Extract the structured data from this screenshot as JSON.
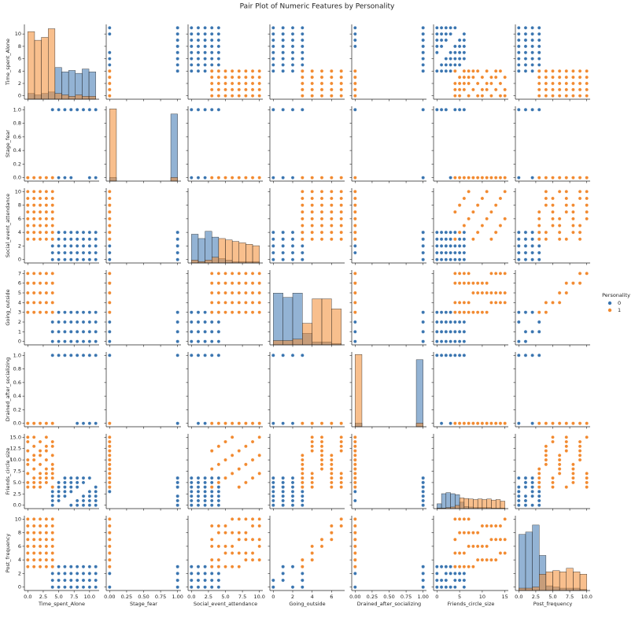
{
  "chart_data": {
    "type": "pairplot",
    "title": "Pair Plot of Numeric Features by Personality",
    "legend_title": "Personality",
    "legend": "right",
    "variables": [
      {
        "name": "Time_spent_Alone",
        "lim": [
          -0.55,
          11.55
        ],
        "xticks": [
          {
            "value": 0,
            "label": "0.0"
          },
          {
            "value": 2.5,
            "label": "2.5"
          },
          {
            "value": 5,
            "label": "5.0"
          },
          {
            "value": 7.5,
            "label": "7.5"
          },
          {
            "value": 10,
            "label": "10.0"
          }
        ],
        "yticks": [
          0,
          2,
          4,
          6,
          8,
          10
        ],
        "bins": [
          0,
          1.1,
          2.2,
          3.3,
          4.4,
          5.5,
          6.6,
          7.7,
          8.8,
          9.9,
          11
        ],
        "hist_ylim": [
          0,
          260
        ]
      },
      {
        "name": "Stage_fear",
        "lim": [
          -0.05,
          1.05
        ],
        "xticks": [
          {
            "value": 0,
            "label": "0.00"
          },
          {
            "value": 0.25,
            "label": "0.25"
          },
          {
            "value": 0.5,
            "label": "0.50"
          },
          {
            "value": 0.75,
            "label": "0.75"
          },
          {
            "value": 1,
            "label": "1.00"
          }
        ],
        "yticks": [
          {
            "value": 0,
            "label": "0.0"
          },
          0.2,
          0.4,
          0.6,
          0.8,
          {
            "value": 1,
            "label": "1.0"
          }
        ],
        "bins": [
          0,
          0.1,
          0.2,
          0.3,
          0.4,
          0.5,
          0.6,
          0.7,
          0.8,
          0.9,
          1
        ],
        "hist_ylim": [
          0,
          1450
        ]
      },
      {
        "name": "Social_event_attendance",
        "lim": [
          -0.5,
          10.5
        ],
        "xticks": [
          {
            "value": 0,
            "label": "0.0"
          },
          {
            "value": 2.5,
            "label": "2.5"
          },
          {
            "value": 5,
            "label": "5.0"
          },
          {
            "value": 7.5,
            "label": "7.5"
          },
          {
            "value": 10,
            "label": "10.0"
          }
        ],
        "yticks": [
          0,
          2,
          4,
          6,
          8,
          10
        ],
        "bins": [
          0,
          1,
          2,
          3,
          4,
          5,
          6,
          7,
          8,
          9,
          10
        ],
        "hist_ylim": [
          0,
          260
        ]
      },
      {
        "name": "Going_outside",
        "lim": [
          -0.35,
          7.35
        ],
        "xticks": [
          0,
          2,
          4,
          6
        ],
        "yticks": [
          0,
          1,
          2,
          3,
          4,
          5,
          6,
          7
        ],
        "bins": [
          0,
          1,
          2,
          3,
          4,
          5,
          6,
          7
        ],
        "hist_ylim": [
          0,
          260
        ]
      },
      {
        "name": "Drained_after_socializing",
        "lim": [
          -0.05,
          1.05
        ],
        "xticks": [
          {
            "value": 0,
            "label": "0.00"
          },
          {
            "value": 0.25,
            "label": "0.25"
          },
          {
            "value": 0.5,
            "label": "0.50"
          },
          {
            "value": 0.75,
            "label": "0.75"
          },
          {
            "value": 1,
            "label": "1.00"
          }
        ],
        "yticks": [
          {
            "value": 0,
            "label": "0.0"
          },
          0.2,
          0.4,
          0.6,
          0.8,
          {
            "value": 1,
            "label": "1.0"
          }
        ],
        "bins": [
          0,
          0.1,
          0.2,
          0.3,
          0.4,
          0.5,
          0.6,
          0.7,
          0.8,
          0.9,
          1
        ],
        "hist_ylim": [
          0,
          1450
        ]
      },
      {
        "name": "Friends_circle_size",
        "lim": [
          -0.75,
          15.75
        ],
        "xticks": [
          0,
          5,
          10,
          15
        ],
        "yticks": [
          {
            "value": 0,
            "label": "0.0"
          },
          2.5,
          {
            "value": 5,
            "label": "5.0"
          },
          7.5,
          {
            "value": 10,
            "label": "10.0"
          },
          12.5,
          {
            "value": 15,
            "label": "15.0"
          }
        ],
        "bins": [
          0,
          1,
          2,
          3,
          4,
          5,
          6,
          7,
          8,
          9,
          10,
          11,
          12,
          13,
          14,
          15
        ],
        "hist_ylim": [
          0,
          700
        ]
      },
      {
        "name": "Post_frequency",
        "lim": [
          -0.5,
          10.5
        ],
        "xticks": [
          {
            "value": 0,
            "label": "0.0"
          },
          {
            "value": 2.5,
            "label": "2.5"
          },
          {
            "value": 5,
            "label": "5.0"
          },
          {
            "value": 7.5,
            "label": "7.5"
          },
          {
            "value": 10,
            "label": "10.0"
          }
        ],
        "yticks": [
          0,
          2,
          4,
          6,
          8,
          10
        ],
        "bins": [
          0,
          1,
          2,
          3,
          4,
          5,
          6,
          7,
          8,
          9,
          10
        ],
        "hist_ylim": [
          0,
          320
        ]
      }
    ],
    "series": [
      {
        "name": "0",
        "color": "#3a75b0",
        "columns": [
          [
            4,
            5,
            6,
            7,
            8,
            9,
            10,
            11,
            4,
            5,
            6,
            7,
            8,
            9,
            10,
            11,
            4,
            5,
            6,
            7,
            8,
            9,
            10,
            11,
            4,
            5,
            6,
            7,
            8,
            9,
            10,
            11,
            4,
            5,
            6,
            7,
            8,
            9,
            10,
            11
          ],
          [
            1,
            1,
            1,
            0,
            1,
            1,
            1,
            1,
            1,
            1,
            0,
            1,
            1,
            1,
            1,
            1,
            1,
            0,
            1,
            1,
            1,
            1,
            1,
            1,
            0,
            1,
            1,
            1,
            1,
            1,
            1,
            0,
            1,
            1,
            1,
            1,
            1,
            1,
            0,
            1
          ],
          [
            0,
            1,
            2,
            3,
            4,
            0,
            1,
            2,
            3,
            4,
            0,
            1,
            2,
            3,
            4,
            0,
            1,
            2,
            3,
            4,
            0,
            1,
            2,
            3,
            4,
            0,
            1,
            2,
            3,
            4,
            0,
            1,
            2,
            3,
            4,
            0,
            1,
            2,
            3,
            4
          ],
          [
            0,
            0,
            0,
            0,
            0,
            0,
            0,
            0,
            1,
            1,
            1,
            1,
            1,
            1,
            1,
            1,
            2,
            2,
            2,
            2,
            2,
            2,
            2,
            2,
            3,
            3,
            3,
            3,
            3,
            3,
            3,
            3,
            1,
            1,
            1,
            1,
            1,
            1,
            1,
            1
          ],
          [
            1,
            1,
            1,
            1,
            0,
            1,
            1,
            1,
            1,
            1,
            1,
            1,
            1,
            0,
            1,
            1,
            1,
            1,
            1,
            1,
            1,
            1,
            0,
            1,
            1,
            1,
            1,
            1,
            1,
            1,
            1,
            0,
            1,
            1,
            1,
            1,
            1,
            1,
            1,
            1
          ],
          [
            0,
            1,
            2,
            3,
            4,
            5,
            6,
            0,
            1,
            2,
            3,
            4,
            5,
            6,
            0,
            1,
            2,
            3,
            4,
            5,
            6,
            0,
            1,
            2,
            3,
            4,
            5,
            6,
            0,
            1,
            2,
            3,
            4,
            5,
            6,
            0,
            1,
            2,
            3,
            4
          ],
          [
            0,
            0,
            0,
            0,
            0,
            1,
            1,
            1,
            1,
            1,
            2,
            2,
            2,
            2,
            2,
            3,
            3,
            3,
            3,
            3,
            0,
            0,
            0,
            0,
            0,
            1,
            1,
            1,
            1,
            1,
            2,
            2,
            2,
            2,
            2,
            3,
            3,
            3,
            3,
            3
          ]
        ],
        "hist": [
          [
            20,
            15,
            20,
            25,
            110,
            95,
            100,
            90,
            105,
            95
          ],
          [
            70,
            0,
            0,
            0,
            0,
            0,
            0,
            0,
            0,
            1300
          ],
          [
            100,
            85,
            110,
            90,
            15,
            10,
            5,
            5,
            5,
            5
          ],
          [
            180,
            165,
            180,
            40,
            10,
            10,
            5
          ],
          [
            70,
            0,
            0,
            0,
            0,
            0,
            0,
            0,
            0,
            1300
          ],
          [
            45,
            140,
            150,
            140,
            130,
            60,
            20,
            15,
            10,
            10,
            10,
            10,
            5,
            5,
            5
          ],
          [
            240,
            250,
            280,
            150,
            20,
            15,
            10,
            10,
            10,
            5
          ]
        ]
      },
      {
        "name": "1",
        "color": "#f28a30",
        "columns": [
          [
            0,
            1,
            2,
            3,
            4,
            0,
            1,
            2,
            3,
            4,
            0,
            1,
            2,
            3,
            4,
            0,
            1,
            2,
            3,
            4,
            0,
            1,
            2,
            3,
            4,
            0,
            1,
            2,
            3,
            4,
            0,
            1,
            2,
            3,
            4,
            0,
            1,
            2,
            3,
            4
          ],
          [
            0,
            0,
            0,
            0,
            0,
            0,
            0,
            0,
            0,
            0,
            0,
            0,
            0,
            0,
            0,
            0,
            0,
            0,
            0,
            0,
            0,
            0,
            0,
            0,
            0,
            0,
            0,
            0,
            0,
            0,
            0,
            0,
            0,
            0,
            0,
            0,
            0,
            0,
            0,
            0
          ],
          [
            3,
            4,
            5,
            6,
            7,
            8,
            9,
            10,
            3,
            4,
            5,
            6,
            7,
            8,
            9,
            10,
            3,
            4,
            5,
            6,
            7,
            8,
            9,
            10,
            3,
            4,
            5,
            6,
            7,
            8,
            9,
            10,
            3,
            4,
            5,
            6,
            7,
            8,
            9,
            10
          ],
          [
            3,
            3,
            3,
            3,
            3,
            3,
            3,
            3,
            4,
            4,
            4,
            4,
            4,
            4,
            4,
            4,
            5,
            5,
            5,
            5,
            5,
            5,
            5,
            5,
            6,
            6,
            6,
            6,
            6,
            6,
            6,
            6,
            7,
            7,
            7,
            7,
            7,
            7,
            7,
            7
          ],
          [
            0,
            0,
            0,
            0,
            0,
            0,
            0,
            0,
            0,
            0,
            0,
            0,
            0,
            0,
            0,
            0,
            0,
            0,
            0,
            0,
            0,
            0,
            0,
            0,
            0,
            0,
            0,
            0,
            0,
            0,
            0,
            0,
            0,
            0,
            0,
            0,
            0,
            0,
            0,
            0
          ],
          [
            4,
            5,
            6,
            7,
            8,
            9,
            10,
            11,
            12,
            13,
            14,
            15,
            4,
            5,
            6,
            7,
            8,
            9,
            10,
            11,
            12,
            13,
            14,
            15,
            4,
            5,
            6,
            7,
            8,
            9,
            10,
            11,
            12,
            13,
            14,
            15,
            4,
            5,
            6,
            7
          ],
          [
            3,
            3,
            3,
            3,
            3,
            4,
            4,
            4,
            4,
            4,
            5,
            5,
            5,
            5,
            5,
            6,
            6,
            6,
            6,
            6,
            7,
            7,
            7,
            7,
            7,
            8,
            8,
            8,
            8,
            8,
            9,
            9,
            9,
            9,
            9,
            10,
            10,
            10,
            10,
            10
          ]
        ],
        "hist": [
          [
            235,
            205,
            215,
            245,
            20,
            15,
            10,
            15,
            10,
            10
          ],
          [
            1400,
            0,
            0,
            0,
            0,
            0,
            0,
            0,
            0,
            70
          ],
          [
            10,
            5,
            10,
            20,
            85,
            80,
            75,
            70,
            65,
            60
          ],
          [
            15,
            15,
            20,
            75,
            160,
            160,
            125
          ],
          [
            1400,
            0,
            0,
            0,
            0,
            0,
            0,
            0,
            0,
            70
          ],
          [
            5,
            5,
            10,
            15,
            30,
            100,
            95,
            90,
            85,
            90,
            85,
            90,
            80,
            85,
            70
          ],
          [
            10,
            10,
            15,
            70,
            80,
            85,
            80,
            95,
            80,
            70
          ]
        ]
      }
    ]
  }
}
